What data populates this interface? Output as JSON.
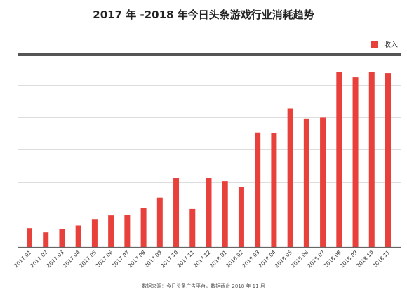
{
  "chart_data": {
    "type": "bar",
    "title": "2017 年 -2018 年今日头条游戏行业消耗趋势",
    "source_note": "数据来源：今日头条广告平台，数据截止 2018 年 11 月",
    "legend": {
      "position": "top-right",
      "entries": [
        "收入"
      ]
    },
    "categories": [
      "2017.01",
      "2017.02",
      "2017.03",
      "2017.04",
      "2017.05",
      "2017.06",
      "2017.07",
      "2017.08",
      "2017.09",
      "2017.10",
      "2017.11",
      "2017.12",
      "2018.01",
      "2018.02",
      "2018.03",
      "2018.04",
      "2018.05",
      "2018.06",
      "2018.07",
      "2018.08",
      "2018.09",
      "2018.10",
      "2018.11"
    ],
    "series": [
      {
        "name": "收入",
        "color": "#e8403a",
        "values": [
          0.58,
          0.45,
          0.55,
          0.66,
          0.86,
          0.97,
          0.99,
          1.21,
          1.52,
          2.14,
          1.17,
          2.14,
          2.03,
          1.84,
          3.53,
          3.51,
          4.27,
          3.96,
          3.99,
          5.39,
          5.23,
          5.39,
          5.36
        ]
      }
    ],
    "ylim": [
      0,
      5.6
    ],
    "yticks": [
      0,
      1,
      2,
      3,
      4,
      5
    ],
    "xlabel": "",
    "ylabel": "",
    "y_tick_labels_shown": false,
    "grid": true,
    "colors": {
      "bar": "#e8403a",
      "grid": "#dddddd",
      "top_rule": "#555555",
      "baseline": "#666666",
      "text": "#333333"
    }
  }
}
